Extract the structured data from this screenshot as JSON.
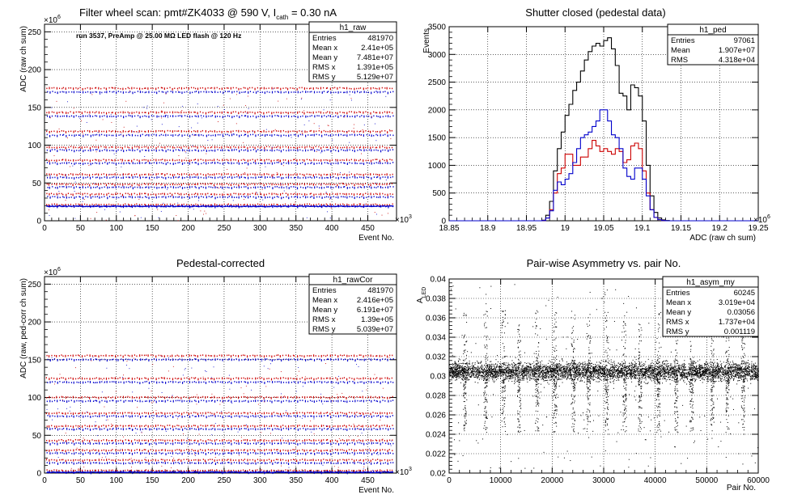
{
  "window": {
    "width": 996,
    "height": 622
  },
  "colors": {
    "black": "#000000",
    "red": "#cc0000",
    "blue": "#0000cc",
    "grid": "#000000",
    "background": "#ffffff"
  },
  "panels": [
    {
      "id": "raw",
      "title_main": "Filter wheel scan: pmt#ZK4033 @   590 V, I",
      "title_sub": "cath",
      "title_rest": " = 0.30 nA",
      "note": "run 3537, PreAmp @ 25.00 MΩ LED flash @  120 Hz",
      "ylabel": "ADC (raw ch sum)",
      "xlabel": "Event No.",
      "y_exponent": "×10",
      "y_exponent_power": "6",
      "x_exponent": "×10",
      "x_exponent_power": "3",
      "stats": {
        "name": "h1_raw",
        "rows": [
          {
            "label": "Entries",
            "value": "481970"
          },
          {
            "label": "Mean x",
            "value": "2.41e+05"
          },
          {
            "label": "Mean y",
            "value": "7.481e+07"
          },
          {
            "label": "RMS x",
            "value": "1.391e+05"
          },
          {
            "label": "RMS y",
            "value": "5.129e+07"
          }
        ]
      }
    },
    {
      "id": "ped",
      "title": "Shutter closed (pedestal data)",
      "ylabel": "Events",
      "xlabel": "ADC (raw ch sum)",
      "x_exponent": "×10",
      "x_exponent_power": "6",
      "stats": {
        "name": "h1_ped",
        "rows": [
          {
            "label": "Entries",
            "value": "97061"
          },
          {
            "label": "Mean",
            "value": "1.907e+07"
          },
          {
            "label": "RMS",
            "value": "4.318e+04"
          }
        ]
      }
    },
    {
      "id": "rawcor",
      "title": "Pedestal-corrected",
      "ylabel": "ADC (raw, ped-corr ch sum)",
      "xlabel": "Event No.",
      "y_exponent": "×10",
      "y_exponent_power": "6",
      "x_exponent": "×10",
      "x_exponent_power": "3",
      "stats": {
        "name": "h1_rawCor",
        "rows": [
          {
            "label": "Entries",
            "value": "481970"
          },
          {
            "label": "Mean x",
            "value": "2.416e+05"
          },
          {
            "label": "Mean y",
            "value": "6.191e+07"
          },
          {
            "label": "RMS x",
            "value": "1.39e+05"
          },
          {
            "label": "RMS y",
            "value": "5.039e+07"
          }
        ]
      }
    },
    {
      "id": "asym",
      "title": "Pair-wise Asymmetry vs. pair No.",
      "ylabel": "A",
      "ylabel_sub": "LED",
      "xlabel": "Pair No.",
      "stats": {
        "name": "h1_asym_my",
        "rows": [
          {
            "label": "Entries",
            "value": "60245"
          },
          {
            "label": "Mean x",
            "value": "3.019e+04"
          },
          {
            "label": "Mean y",
            "value": "0.03056"
          },
          {
            "label": "RMS x",
            "value": "1.737e+04"
          },
          {
            "label": "RMS y",
            "value": "0.001119"
          }
        ]
      }
    }
  ],
  "chart_data": [
    {
      "id": "raw",
      "type": "scatter",
      "xlim": [
        0,
        490
      ],
      "ylim": [
        0,
        260
      ],
      "xticks": [
        0,
        50,
        100,
        150,
        200,
        250,
        300,
        350,
        400,
        450
      ],
      "yticks": [
        0,
        50,
        100,
        150,
        200,
        250
      ],
      "grid": true,
      "pattern": {
        "block_width": 23,
        "block_starts": [
          2,
          25,
          48,
          71,
          94,
          117,
          140,
          163,
          186,
          209,
          232,
          255,
          278,
          301,
          324,
          347,
          370,
          393,
          416,
          439,
          462
        ],
        "red_levels": [
          175,
          143,
          118,
          97,
          80,
          61,
          48,
          35,
          21
        ],
        "blue_levels": [
          170,
          138,
          113,
          93,
          76,
          57,
          44,
          31,
          19
        ]
      }
    },
    {
      "id": "ped",
      "type": "line",
      "xlim": [
        18.85,
        19.25
      ],
      "ylim": [
        0,
        3500
      ],
      "xticks": [
        18.85,
        18.9,
        18.95,
        19.0,
        19.05,
        19.1,
        19.15,
        19.2,
        19.25
      ],
      "yticks": [
        0,
        500,
        1000,
        1500,
        2000,
        2500,
        3000,
        3500
      ],
      "grid": true,
      "bin_width": 0.005,
      "bin_start": 18.85,
      "series": [
        {
          "color": "black",
          "values": [
            0,
            0,
            0,
            0,
            0,
            0,
            0,
            0,
            0,
            0,
            0,
            0,
            0,
            0,
            0,
            0,
            0,
            0,
            0,
            0,
            0,
            0,
            0,
            0,
            10,
            100,
            350,
            900,
            1300,
            1600,
            1900,
            2100,
            2350,
            2500,
            2700,
            2900,
            3050,
            3150,
            3200,
            3150,
            3250,
            3300,
            3100,
            2800,
            2300,
            2250,
            2000,
            2450,
            2400,
            2250,
            1800,
            1000,
            450,
            150,
            50,
            15,
            5,
            0,
            0,
            0,
            0,
            0,
            0,
            0,
            0,
            0,
            0,
            0,
            0,
            0,
            0,
            0,
            0,
            0,
            0,
            0,
            0,
            0,
            0,
            0
          ]
        },
        {
          "color": "red",
          "values": [
            0,
            0,
            0,
            0,
            0,
            0,
            0,
            0,
            0,
            0,
            0,
            0,
            0,
            0,
            0,
            0,
            0,
            0,
            0,
            0,
            0,
            0,
            0,
            0,
            5,
            50,
            200,
            500,
            850,
            950,
            1200,
            1200,
            1000,
            1000,
            1150,
            1150,
            1300,
            1450,
            1350,
            1250,
            1300,
            1250,
            1200,
            1300,
            1250,
            1050,
            1100,
            1350,
            1400,
            1300,
            900,
            500,
            200,
            60,
            20,
            5,
            0,
            0,
            0,
            0,
            0,
            0,
            0,
            0,
            0,
            0,
            0,
            0,
            0,
            0,
            0,
            0,
            0,
            0,
            0,
            0,
            0,
            0,
            0,
            0
          ]
        },
        {
          "color": "blue",
          "values": [
            0,
            0,
            0,
            0,
            0,
            0,
            0,
            0,
            0,
            0,
            0,
            0,
            0,
            0,
            0,
            0,
            0,
            0,
            0,
            0,
            0,
            0,
            0,
            0,
            5,
            50,
            180,
            550,
            700,
            650,
            750,
            850,
            1050,
            1300,
            1500,
            1550,
            1600,
            1700,
            1800,
            2000,
            2000,
            1800,
            1550,
            1500,
            1300,
            950,
            800,
            750,
            950,
            950,
            750,
            450,
            200,
            60,
            20,
            5,
            0,
            0,
            0,
            0,
            0,
            0,
            0,
            0,
            0,
            0,
            0,
            0,
            0,
            0,
            0,
            0,
            0,
            0,
            0,
            0,
            0,
            0,
            0,
            0
          ]
        }
      ]
    },
    {
      "id": "rawcor",
      "type": "scatter",
      "xlim": [
        0,
        490
      ],
      "ylim": [
        0,
        260
      ],
      "xticks": [
        0,
        50,
        100,
        150,
        200,
        250,
        300,
        350,
        400,
        450
      ],
      "yticks": [
        0,
        50,
        100,
        150,
        200,
        250
      ],
      "grid": true,
      "pattern": {
        "block_width": 23,
        "block_starts": [
          2,
          25,
          48,
          71,
          94,
          117,
          140,
          163,
          186,
          209,
          232,
          255,
          278,
          301,
          324,
          347,
          370,
          393,
          416,
          439,
          462
        ],
        "red_levels": [
          155,
          125,
          100,
          79,
          62,
          43,
          30,
          17,
          3
        ],
        "blue_levels": [
          150,
          120,
          95,
          75,
          58,
          39,
          26,
          13,
          1
        ]
      }
    },
    {
      "id": "asym",
      "type": "scatter",
      "xlim": [
        0,
        60000
      ],
      "ylim": [
        0.02,
        0.04
      ],
      "xticks": [
        0,
        10000,
        20000,
        30000,
        40000,
        50000,
        60000
      ],
      "yticks": [
        0.02,
        0.022,
        0.024,
        0.026,
        0.028,
        0.03,
        0.032,
        0.034,
        0.036,
        0.038,
        0.04
      ],
      "grid": true,
      "band_center": 0.0305,
      "band_halfwidth": 0.0008,
      "spike_positions": [
        3000,
        7000,
        10500,
        13500,
        17000,
        20500,
        24000,
        27000,
        30500,
        34000,
        37000,
        40500,
        44000,
        47000,
        51000,
        54000,
        57000
      ]
    }
  ]
}
